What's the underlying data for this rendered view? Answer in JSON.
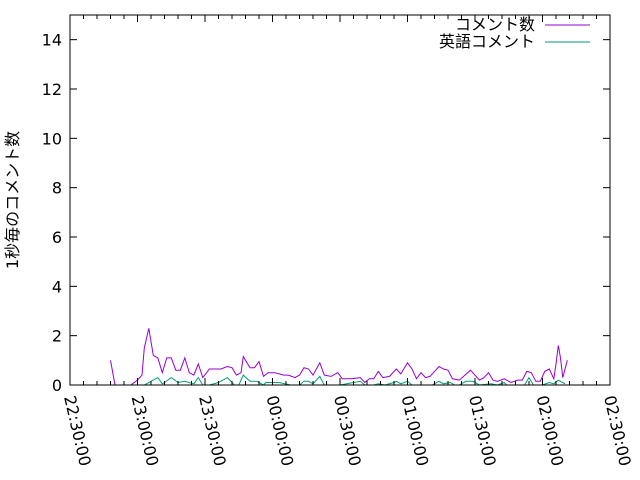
{
  "chart_data": {
    "type": "line",
    "title": "",
    "xlabel": "",
    "ylabel": "1秒毎のコメント数",
    "xlim": [
      "22:30:00",
      "02:30:00"
    ],
    "ylim": [
      0,
      15
    ],
    "x_tick_labels": [
      "22:30:00",
      "23:00:00",
      "23:30:00",
      "00:00:00",
      "00:30:00",
      "01:00:00",
      "01:30:00",
      "02:00:00",
      "02:30:00"
    ],
    "y_ticks": [
      0,
      2,
      4,
      6,
      8,
      10,
      12,
      14
    ],
    "grid": false,
    "legend_position": "top-right",
    "series": [
      {
        "name": "コメント数",
        "color": "#9400d3",
        "x": [
          "22:48",
          "22:50",
          "22:53",
          "22:57",
          "23:00",
          "23:02",
          "23:03",
          "23:05",
          "23:07",
          "23:09",
          "23:11",
          "23:13",
          "23:15",
          "23:17",
          "23:19",
          "23:21",
          "23:23",
          "23:25",
          "23:27",
          "23:29",
          "23:32",
          "23:37",
          "23:40",
          "23:42",
          "23:44",
          "23:46",
          "23:47",
          "23:50",
          "23:52",
          "23:54",
          "23:56",
          "23:58",
          "00:01",
          "00:03",
          "00:05",
          "00:07",
          "00:10",
          "00:12",
          "00:14",
          "00:16",
          "00:18",
          "00:21",
          "00:23",
          "00:26",
          "00:29",
          "00:31",
          "00:35",
          "00:39",
          "00:41",
          "00:43",
          "00:45",
          "00:47",
          "00:49",
          "00:52",
          "00:55",
          "00:57",
          "01:00",
          "01:02",
          "01:04",
          "01:06",
          "01:08",
          "01:10",
          "01:12",
          "01:14",
          "01:16",
          "01:18",
          "01:20",
          "01:23",
          "01:28",
          "01:32",
          "01:34",
          "01:36",
          "01:38",
          "01:40",
          "01:43",
          "01:46",
          "01:49",
          "01:51",
          "01:53",
          "01:55",
          "01:57",
          "01:59",
          "02:01",
          "02:03",
          "02:05",
          "02:06",
          "02:07",
          "02:08",
          "02:09",
          "02:11"
        ],
        "values": [
          1.0,
          0,
          0,
          0,
          0.2,
          0.4,
          1.5,
          2.3,
          1.2,
          1.1,
          0.5,
          1.1,
          1.1,
          0.6,
          0.6,
          1.1,
          0.5,
          0.4,
          0.85,
          0.3,
          0.65,
          0.65,
          0.75,
          0.7,
          0.4,
          0.5,
          1.15,
          0.7,
          0.7,
          0.95,
          0.35,
          0.5,
          0.5,
          0.45,
          0.4,
          0.4,
          0.3,
          0.4,
          0.7,
          0.65,
          0.4,
          0.9,
          0.4,
          0.35,
          0.5,
          0.25,
          0.25,
          0.3,
          0.1,
          0.25,
          0.25,
          0.55,
          0.3,
          0.35,
          0.65,
          0.45,
          0.9,
          0.65,
          0.25,
          0.5,
          0.3,
          0.35,
          0.55,
          0.75,
          0.65,
          0.6,
          0.25,
          0.2,
          0.6,
          0.2,
          0.3,
          0.5,
          0.2,
          0.15,
          0.25,
          0.1,
          0.2,
          0.2,
          0.55,
          0.5,
          0.15,
          0.15,
          0.55,
          0.65,
          0.25,
          0.85,
          1.6,
          1.1,
          0.3,
          1.0
        ]
      },
      {
        "name": "英語コメント",
        "color": "#009e73",
        "x": [
          "23:03",
          "23:09",
          "23:11",
          "23:12",
          "23:15",
          "23:18",
          "23:21",
          "23:25",
          "23:27",
          "23:29",
          "23:32",
          "23:36",
          "23:40",
          "23:43",
          "23:45",
          "23:47",
          "23:50",
          "23:53",
          "23:56",
          "23:57",
          "00:03",
          "00:08",
          "00:12",
          "00:14",
          "00:16",
          "00:18",
          "00:21",
          "00:23",
          "00:30",
          "00:33",
          "00:39",
          "00:41",
          "00:45",
          "00:47",
          "00:50",
          "00:54",
          "00:55",
          "00:57",
          "01:00",
          "01:02",
          "01:06",
          "01:11",
          "01:14",
          "01:16",
          "01:19",
          "01:21",
          "01:23",
          "01:26",
          "01:29",
          "01:32",
          "01:37",
          "01:40",
          "01:43",
          "01:44",
          "01:49",
          "01:52",
          "01:54",
          "01:56",
          "02:00",
          "02:03",
          "02:05",
          "02:07",
          "02:10"
        ],
        "values": [
          0,
          0.3,
          0.05,
          0.1,
          0.3,
          0.1,
          0.15,
          0.05,
          0.3,
          0,
          0,
          0.1,
          0.3,
          0,
          0,
          0.4,
          0.15,
          0.15,
          0,
          0.1,
          0.1,
          0,
          0,
          0.15,
          0.15,
          0.05,
          0.35,
          0,
          0,
          0.05,
          0.15,
          0,
          0,
          0.05,
          0,
          0.1,
          0.15,
          0.05,
          0.15,
          0,
          0,
          0,
          0.15,
          0.05,
          0.1,
          0,
          0,
          0.15,
          0.15,
          0,
          0.05,
          0,
          0.1,
          0,
          0,
          0,
          0.3,
          0,
          0,
          0.1,
          0.05,
          0.2,
          0.05
        ]
      }
    ]
  }
}
